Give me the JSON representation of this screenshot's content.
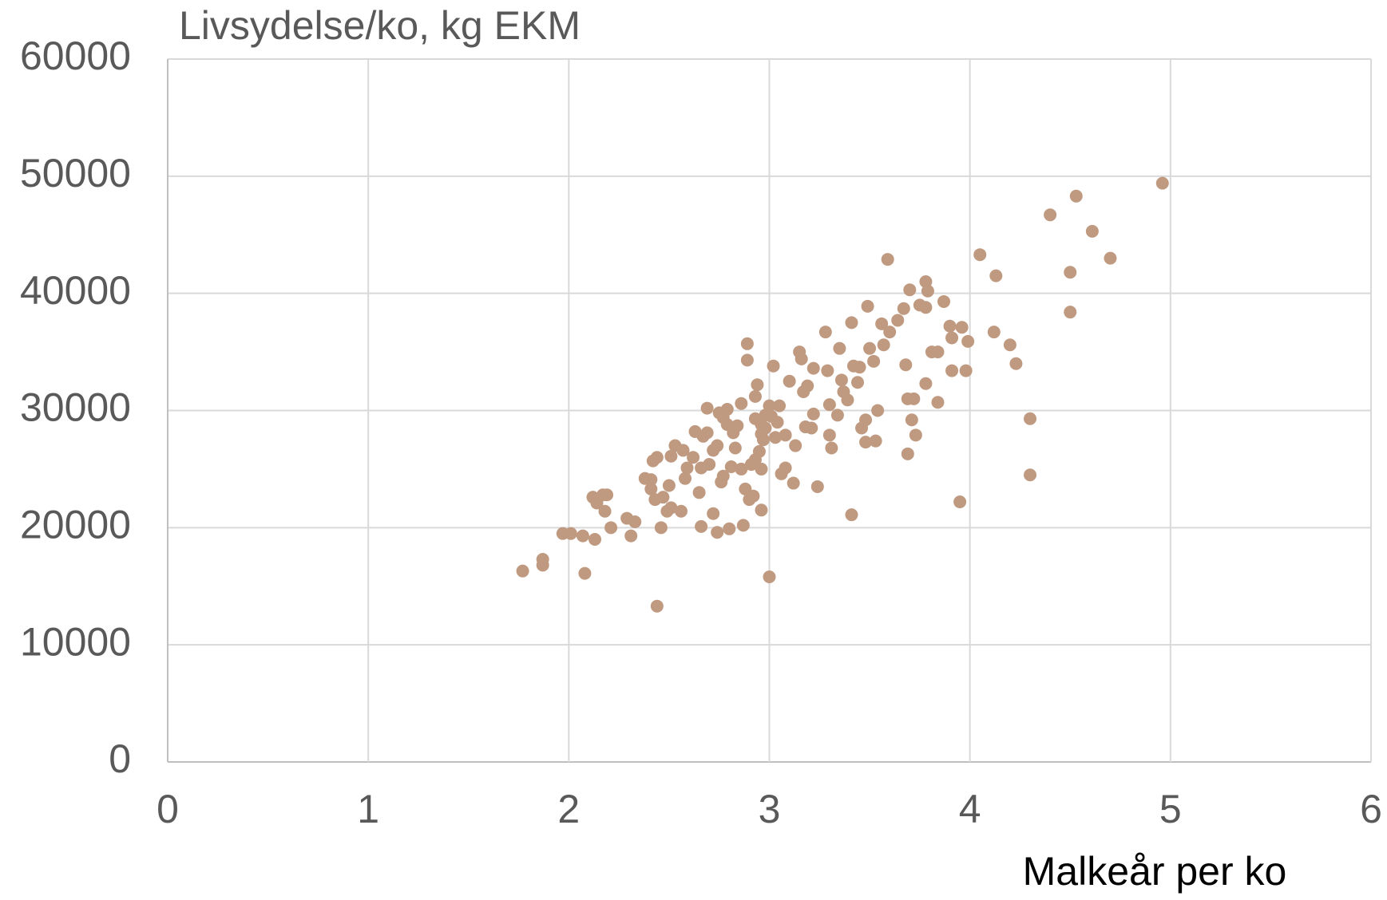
{
  "chart_data": {
    "type": "scatter",
    "title": "Livsydelse/ko, kg EKM",
    "x_label": "Malkeår per ko",
    "x": [
      1.77,
      1.87,
      1.87,
      2.08,
      2.44,
      3.0,
      1.97,
      2.01,
      2.07,
      2.13,
      2.21,
      2.31,
      2.33,
      2.29,
      2.18,
      2.12,
      2.14,
      2.17,
      2.19,
      2.46,
      2.43,
      2.47,
      2.41,
      2.5,
      2.49,
      2.51,
      2.56,
      2.38,
      2.41,
      2.42,
      2.44,
      2.51,
      2.53,
      2.57,
      2.58,
      2.59,
      2.62,
      2.63,
      2.65,
      2.66,
      2.67,
      2.69,
      2.69,
      2.72,
      2.72,
      2.74,
      2.74,
      2.75,
      2.77,
      2.79,
      2.8,
      2.81,
      2.82,
      2.83,
      2.84,
      2.86,
      2.87,
      2.88,
      2.89,
      2.89,
      2.9,
      2.91,
      2.92,
      2.93,
      2.94,
      2.95,
      2.96,
      2.96,
      2.97,
      2.98,
      3.0,
      3.01,
      3.02,
      3.03,
      3.04,
      3.05,
      3.06,
      3.08,
      3.08,
      3.1,
      3.12,
      3.13,
      3.15,
      3.16,
      3.17,
      3.18,
      3.19,
      3.21,
      3.22,
      3.22,
      3.24,
      3.28,
      3.29,
      3.3,
      3.3,
      3.31,
      3.34,
      3.35,
      3.36,
      3.37,
      3.39,
      3.41,
      3.41,
      3.42,
      3.44,
      3.45,
      3.46,
      3.48,
      3.48,
      3.49,
      3.5,
      3.52,
      3.53,
      3.54,
      3.56,
      3.57,
      3.59,
      3.6,
      3.64,
      3.67,
      3.68,
      3.69,
      3.69,
      3.7,
      3.71,
      3.72,
      3.73,
      3.75,
      3.78,
      3.78,
      3.79,
      3.78,
      3.81,
      3.84,
      3.84,
      3.87,
      3.9,
      3.91,
      3.91,
      3.95,
      3.96,
      3.98,
      3.99,
      4.05,
      4.12,
      4.13,
      4.2,
      4.23,
      4.3,
      4.3,
      4.4,
      4.5,
      4.5,
      4.53,
      4.61,
      4.7,
      4.96,
      2.93,
      2.96,
      2.98,
      2.96,
      2.93,
      2.79,
      2.77,
      2.86,
      2.76,
      2.7,
      2.66
    ],
    "values": [
      16300,
      17300,
      16800,
      16100,
      13300,
      15800,
      19500,
      19500,
      19300,
      19000,
      20000,
      19300,
      20500,
      20800,
      21400,
      22600,
      22100,
      22800,
      22800,
      20000,
      22400,
      22600,
      23300,
      23600,
      21400,
      21700,
      21400,
      24200,
      24100,
      25700,
      26000,
      26100,
      27000,
      26600,
      24200,
      25100,
      26000,
      28200,
      23000,
      20100,
      27800,
      28100,
      30200,
      26600,
      21200,
      19600,
      27000,
      29800,
      24400,
      30100,
      19900,
      25200,
      28100,
      26800,
      28700,
      30600,
      20200,
      23300,
      35700,
      34300,
      22400,
      25400,
      22700,
      29300,
      32200,
      26500,
      25000,
      21500,
      27500,
      28500,
      30400,
      29500,
      33800,
      27700,
      29000,
      30400,
      24600,
      25100,
      27900,
      32500,
      23800,
      27000,
      35000,
      34400,
      31600,
      28600,
      32100,
      28500,
      29700,
      33600,
      23500,
      36700,
      33400,
      30500,
      27900,
      26800,
      29600,
      35300,
      32600,
      31600,
      30900,
      21100,
      37500,
      33800,
      32400,
      33700,
      28500,
      29200,
      27300,
      38900,
      35300,
      34200,
      27400,
      30000,
      37400,
      35600,
      42900,
      36700,
      37700,
      38700,
      33900,
      26300,
      31000,
      40300,
      29200,
      31000,
      27900,
      39000,
      38800,
      41000,
      40200,
      32300,
      35000,
      35000,
      30700,
      39300,
      37200,
      36200,
      33400,
      22200,
      37100,
      33400,
      35900,
      43300,
      36700,
      41500,
      35600,
      34000,
      29300,
      24500,
      46700,
      41800,
      38400,
      48300,
      45300,
      43000,
      49400,
      31200,
      28800,
      29600,
      28000,
      25800,
      28800,
      29400,
      25000,
      23900,
      25400,
      25100
    ],
    "color": "#bf9a80",
    "xlim": [
      0,
      6
    ],
    "ylim": [
      0,
      60000
    ],
    "xticks": [
      0,
      1,
      2,
      3,
      4,
      5,
      6
    ],
    "yticks": [
      0,
      10000,
      20000,
      30000,
      40000,
      50000,
      60000
    ],
    "grid": true
  }
}
